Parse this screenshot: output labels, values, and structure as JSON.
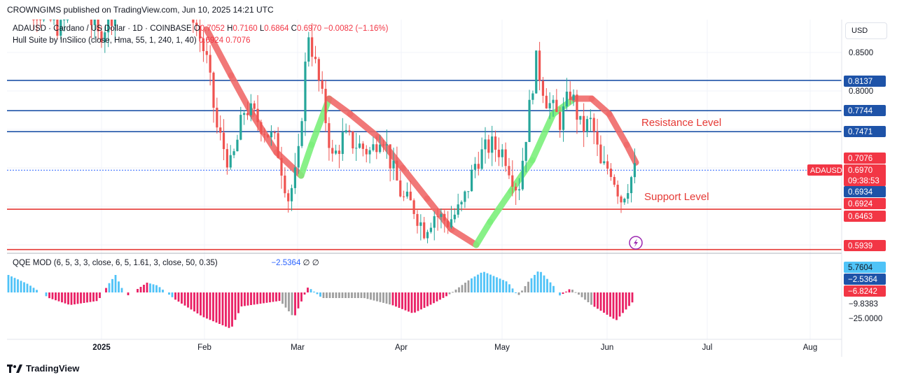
{
  "header": "CROWNGIMS published on TradingView.com, Jun 10, 2025 14:21 UTC",
  "symbol_line": {
    "name": "ADAUSD · Cardano / US Dollar · 1D · COINBASE",
    "o_label": "O",
    "o": "0.7052",
    "h_label": "H",
    "h": "0.7160",
    "l_label": "L",
    "l": "0.6864",
    "c_label": "C",
    "c": "0.6970",
    "change": "−0.0082 (−1.16%)"
  },
  "hull_line": {
    "name": "Hull Suite by InSilico (close, Hma, 55, 1, 240, 1, 40)",
    "v1": "0.6924",
    "v2": "0.7076"
  },
  "qqe_line": {
    "name": "QQE MOD (6, 5, 3, 3, close, 6, 5, 1.61, 3, close, 50, 0.35)",
    "value": "−2.5364",
    "sym1": "∅",
    "sym2": "∅"
  },
  "currency_button": "USD",
  "footer_brand": "TradingView",
  "colors": {
    "up": "#26a69a",
    "down": "#ef5350",
    "hull_up": "#7cf07c",
    "hull_down": "#f06a6a",
    "resistance": "#1e53a8",
    "support": "#e53935",
    "qqe_up": "#4fc3f7",
    "qqe_down": "#e91e63",
    "qqe_neutral": "#9e9e9e"
  },
  "chart_data": {
    "type": "candlestick",
    "price_axis_ticks": [
      "0.8500",
      "0.8000"
    ],
    "qqe_axis_ticks": [
      "−9.8383",
      "−25.0000"
    ],
    "x_tick_labels": [
      "2025",
      "Feb",
      "Mar",
      "Apr",
      "May",
      "Jun",
      "Jul",
      "Aug"
    ],
    "annotations": [
      {
        "text": "Resistance Level"
      },
      {
        "text": "Support Level"
      }
    ],
    "resistance_levels": [
      0.8137,
      0.7744,
      0.7471
    ],
    "support_levels": [
      0.6463,
      0.5939
    ],
    "price_badges": [
      {
        "text": "0.8137",
        "value": 0.8137,
        "kind": "blue"
      },
      {
        "text": "0.7744",
        "value": 0.7744,
        "kind": "blue"
      },
      {
        "text": "0.7471",
        "value": 0.7471,
        "kind": "blue"
      },
      {
        "text": "0.7076",
        "value": 0.7076,
        "kind": "red"
      },
      {
        "text": "0.6970",
        "value": 0.697,
        "kind": "red",
        "symbol": "ADAUSD",
        "countdown": "09:38:53"
      },
      {
        "text": "0.6934",
        "value": 0.6934,
        "kind": "blue"
      },
      {
        "text": "0.6924",
        "value": 0.6924,
        "kind": "red"
      },
      {
        "text": "0.6463",
        "value": 0.6463,
        "kind": "red"
      },
      {
        "text": "0.5939",
        "value": 0.5939,
        "kind": "red"
      }
    ],
    "qqe_badges": [
      {
        "text": "5.7604",
        "kind": "cyan"
      },
      {
        "text": "−2.5364",
        "kind": "blue"
      },
      {
        "text": "−6.8242",
        "kind": "red"
      }
    ]
  }
}
